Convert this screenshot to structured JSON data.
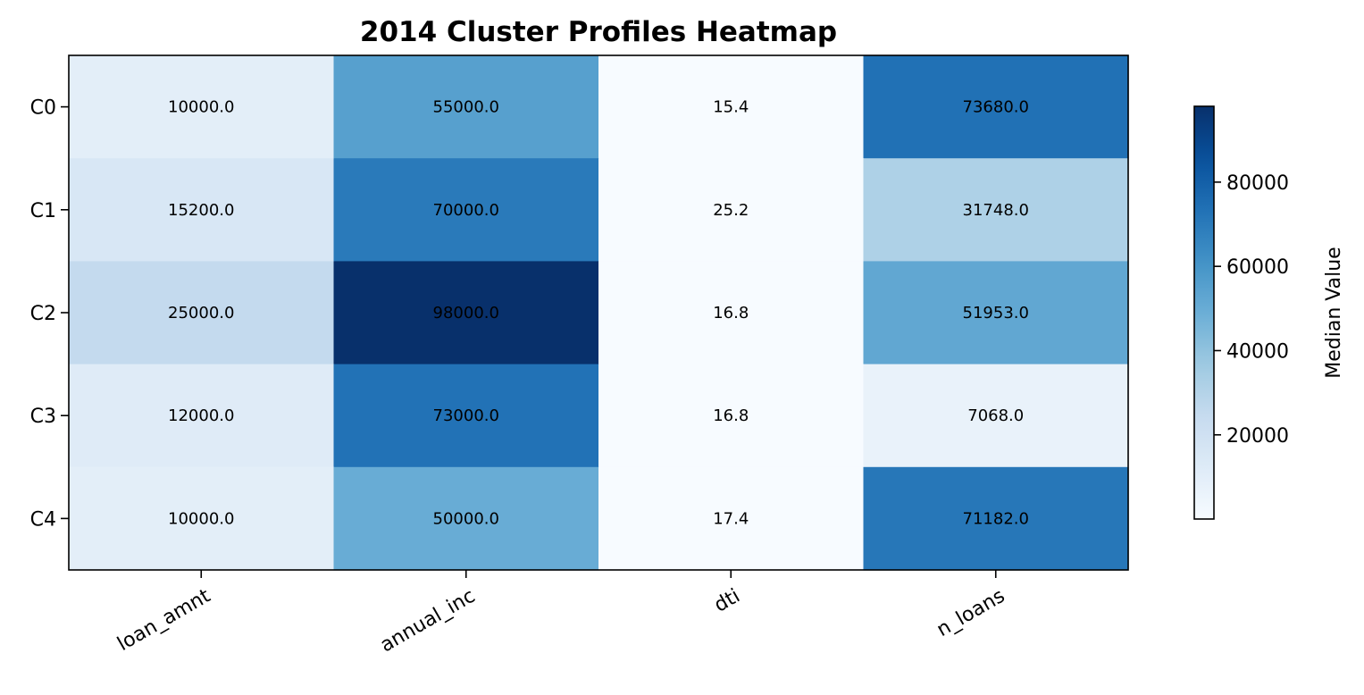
{
  "chart_data": {
    "type": "heatmap",
    "title": "2014 Cluster Profiles Heatmap",
    "rows": [
      "C0",
      "C1",
      "C2",
      "C3",
      "C4"
    ],
    "columns": [
      "loan_amnt",
      "annual_inc",
      "dti",
      "n_loans"
    ],
    "values": [
      [
        10000.0,
        55000.0,
        15.4,
        73680.0
      ],
      [
        15200.0,
        70000.0,
        25.2,
        31748.0
      ],
      [
        25000.0,
        98000.0,
        16.8,
        51953.0
      ],
      [
        12000.0,
        73000.0,
        16.8,
        7068.0
      ],
      [
        10000.0,
        50000.0,
        17.4,
        71182.0
      ]
    ],
    "cell_labels": [
      [
        "10000.0",
        "55000.0",
        "15.4",
        "73680.0"
      ],
      [
        "15200.0",
        "70000.0",
        "25.2",
        "31748.0"
      ],
      [
        "25000.0",
        "98000.0",
        "16.8",
        "51953.0"
      ],
      [
        "12000.0",
        "73000.0",
        "16.8",
        "7068.0"
      ],
      [
        "10000.0",
        "50000.0",
        "17.4",
        "71182.0"
      ]
    ],
    "colormap": "Blues",
    "color_range": [
      15.4,
      98000.0
    ],
    "colorbar": {
      "label": "Median Value",
      "ticks": [
        20000,
        40000,
        60000,
        80000
      ],
      "tick_labels": [
        "20000",
        "40000",
        "60000",
        "80000"
      ],
      "placement": "right"
    },
    "cell_text_color": "#000000",
    "grid": false
  }
}
